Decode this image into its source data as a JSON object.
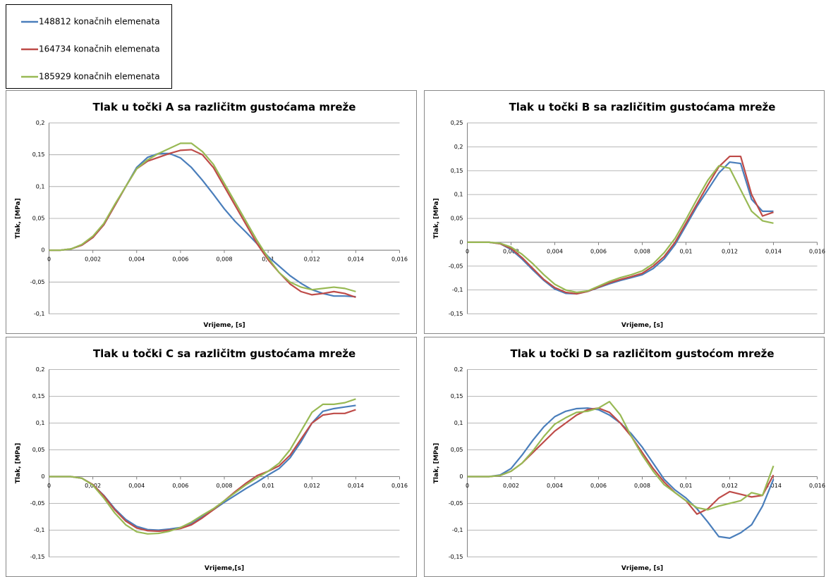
{
  "legend": {
    "entries": [
      {
        "name": "148812 konačnih elemenata",
        "color": "#4a7ebb"
      },
      {
        "name": "164734 konačnih elemenata",
        "color": "#be4b48"
      },
      {
        "name": "185929 konačnih elemenata",
        "color": "#98b954"
      }
    ]
  },
  "chart_data": [
    {
      "type": "line",
      "title": "Tlak u točki A sa različitm gustoćama mreže",
      "x_label": "Vrijeme, [s]",
      "y_label": "Tlak, [MPa]",
      "x": [
        0,
        0.0005,
        0.001,
        0.0015,
        0.002,
        0.0025,
        0.003,
        0.0035,
        0.004,
        0.0045,
        0.005,
        0.0055,
        0.006,
        0.0065,
        0.007,
        0.0075,
        0.008,
        0.0085,
        0.009,
        0.0095,
        0.01,
        0.0105,
        0.011,
        0.0115,
        0.012,
        0.0125,
        0.013,
        0.0135,
        0.014
      ],
      "series": [
        {
          "values": [
            0,
            0,
            0.002,
            0.008,
            0.02,
            0.04,
            0.07,
            0.1,
            0.13,
            0.146,
            0.152,
            0.152,
            0.145,
            0.13,
            0.11,
            0.088,
            0.065,
            0.045,
            0.028,
            0.01,
            -0.01,
            -0.025,
            -0.04,
            -0.052,
            -0.062,
            -0.068,
            -0.072,
            -0.072,
            -0.073
          ]
        },
        {
          "values": [
            0,
            0,
            0.002,
            0.008,
            0.02,
            0.04,
            0.07,
            0.1,
            0.128,
            0.14,
            0.146,
            0.152,
            0.157,
            0.158,
            0.15,
            0.13,
            0.1,
            0.07,
            0.04,
            0.01,
            -0.015,
            -0.035,
            -0.053,
            -0.065,
            -0.07,
            -0.068,
            -0.065,
            -0.068,
            -0.074
          ]
        },
        {
          "values": [
            0,
            0,
            0.002,
            0.009,
            0.022,
            0.042,
            0.072,
            0.1,
            0.128,
            0.142,
            0.152,
            0.16,
            0.168,
            0.168,
            0.155,
            0.135,
            0.105,
            0.075,
            0.045,
            0.015,
            -0.012,
            -0.035,
            -0.05,
            -0.058,
            -0.062,
            -0.06,
            -0.058,
            -0.06,
            -0.065
          ]
        }
      ],
      "xlim": [
        0,
        0.016
      ],
      "xticks": [
        0,
        {
          "value": 0.002,
          "label": "0,002"
        },
        {
          "value": 0.004,
          "label": "0,004"
        },
        {
          "value": 0.006,
          "label": "0,006"
        },
        {
          "value": 0.008,
          "label": "0,008"
        },
        {
          "value": 0.01,
          "label": "0,01"
        },
        {
          "value": 0.012,
          "label": "0,012"
        },
        {
          "value": 0.014,
          "label": "0,014"
        },
        {
          "value": 0.016,
          "label": "0,016"
        }
      ],
      "ylim": [
        -0.1,
        0.2
      ],
      "yticks": [
        {
          "value": -0.1,
          "label": "-0,1"
        },
        {
          "value": -0.05,
          "label": "-0,05"
        },
        0,
        {
          "value": 0.05,
          "label": "0,05"
        },
        {
          "value": 0.1,
          "label": "0,1"
        },
        {
          "value": 0.15,
          "label": "0,15"
        },
        {
          "value": 0.2,
          "label": "0,2"
        }
      ],
      "grid": true
    },
    {
      "type": "line",
      "title": "Tlak u točki B sa različitim gustoćama mreže",
      "x_label": "Vrijeme, [s]",
      "y_label": "Tlak, [MPa]",
      "x": [
        0,
        0.0005,
        0.001,
        0.0015,
        0.002,
        0.0025,
        0.003,
        0.0035,
        0.004,
        0.0045,
        0.005,
        0.0055,
        0.006,
        0.0065,
        0.007,
        0.0075,
        0.008,
        0.0085,
        0.009,
        0.0095,
        0.01,
        0.0105,
        0.011,
        0.0115,
        0.012,
        0.0125,
        0.013,
        0.0135,
        0.014
      ],
      "series": [
        {
          "values": [
            0,
            0,
            0,
            -0.003,
            -0.015,
            -0.035,
            -0.058,
            -0.08,
            -0.098,
            -0.107,
            -0.108,
            -0.103,
            -0.095,
            -0.087,
            -0.08,
            -0.074,
            -0.068,
            -0.055,
            -0.035,
            -0.005,
            0.035,
            0.075,
            0.11,
            0.145,
            0.168,
            0.165,
            0.09,
            0.065,
            0.065
          ]
        },
        {
          "values": [
            0,
            0,
            0,
            -0.003,
            -0.013,
            -0.032,
            -0.055,
            -0.078,
            -0.095,
            -0.105,
            -0.108,
            -0.103,
            -0.094,
            -0.085,
            -0.078,
            -0.072,
            -0.065,
            -0.05,
            -0.03,
            0,
            0.04,
            0.08,
            0.12,
            0.158,
            0.18,
            0.18,
            0.1,
            0.055,
            0.063
          ]
        },
        {
          "values": [
            0,
            0,
            0,
            -0.002,
            -0.01,
            -0.025,
            -0.045,
            -0.068,
            -0.088,
            -0.1,
            -0.105,
            -0.102,
            -0.092,
            -0.082,
            -0.074,
            -0.068,
            -0.06,
            -0.045,
            -0.022,
            0.008,
            0.048,
            0.09,
            0.13,
            0.16,
            0.155,
            0.11,
            0.065,
            0.045,
            0.04
          ]
        }
      ],
      "xlim": [
        0,
        0.016
      ],
      "xticks": [
        0,
        {
          "value": 0.002,
          "label": "0,002"
        },
        {
          "value": 0.004,
          "label": "0,004"
        },
        {
          "value": 0.006,
          "label": "0,006"
        },
        {
          "value": 0.008,
          "label": "0,008"
        },
        {
          "value": 0.01,
          "label": "0,01"
        },
        {
          "value": 0.012,
          "label": "0,012"
        },
        {
          "value": 0.014,
          "label": "0,014"
        },
        {
          "value": 0.016,
          "label": "0,016"
        }
      ],
      "ylim": [
        -0.15,
        0.25
      ],
      "yticks": [
        {
          "value": -0.15,
          "label": "-0,15"
        },
        {
          "value": -0.1,
          "label": "-0,1"
        },
        {
          "value": -0.05,
          "label": "-0,05"
        },
        0,
        {
          "value": 0.05,
          "label": "0,05"
        },
        {
          "value": 0.1,
          "label": "0,1"
        },
        {
          "value": 0.15,
          "label": "0,15"
        },
        {
          "value": 0.2,
          "label": "0,2"
        },
        {
          "value": 0.25,
          "label": "0,25"
        }
      ],
      "grid": true
    },
    {
      "type": "line",
      "title": "Tlak u točki C sa različitm gustoćama mreže",
      "x_label": "Vrijeme,[s]",
      "y_label": "Tlak, [MPa]",
      "x": [
        0,
        0.0005,
        0.001,
        0.0015,
        0.002,
        0.0025,
        0.003,
        0.0035,
        0.004,
        0.0045,
        0.005,
        0.0055,
        0.006,
        0.0065,
        0.007,
        0.0075,
        0.008,
        0.0085,
        0.009,
        0.0095,
        0.01,
        0.0105,
        0.011,
        0.0115,
        0.012,
        0.0125,
        0.013,
        0.0135,
        0.014
      ],
      "series": [
        {
          "values": [
            0,
            0,
            0,
            -0.003,
            -0.015,
            -0.035,
            -0.06,
            -0.08,
            -0.093,
            -0.099,
            -0.1,
            -0.098,
            -0.095,
            -0.088,
            -0.075,
            -0.062,
            -0.048,
            -0.035,
            -0.022,
            -0.01,
            0.003,
            0.015,
            0.035,
            0.065,
            0.1,
            0.122,
            0.127,
            0.13,
            0.133
          ]
        },
        {
          "values": [
            0,
            0,
            0,
            -0.003,
            -0.015,
            -0.036,
            -0.062,
            -0.083,
            -0.096,
            -0.101,
            -0.102,
            -0.1,
            -0.097,
            -0.09,
            -0.077,
            -0.062,
            -0.045,
            -0.028,
            -0.012,
            0.002,
            0.01,
            0.02,
            0.04,
            0.07,
            0.1,
            0.115,
            0.118,
            0.118,
            0.125
          ]
        },
        {
          "values": [
            0,
            0,
            0,
            -0.003,
            -0.016,
            -0.04,
            -0.068,
            -0.09,
            -0.103,
            -0.107,
            -0.106,
            -0.102,
            -0.095,
            -0.085,
            -0.072,
            -0.06,
            -0.045,
            -0.03,
            -0.015,
            -0.002,
            0.01,
            0.025,
            0.05,
            0.085,
            0.12,
            0.135,
            0.135,
            0.138,
            0.145
          ]
        }
      ],
      "xlim": [
        0,
        0.016
      ],
      "xticks": [
        0,
        {
          "value": 0.002,
          "label": "0,002"
        },
        {
          "value": 0.004,
          "label": "0,004"
        },
        {
          "value": 0.006,
          "label": "0,006"
        },
        {
          "value": 0.008,
          "label": "0,008"
        },
        {
          "value": 0.01,
          "label": "0,01"
        },
        {
          "value": 0.012,
          "label": "0,012"
        },
        {
          "value": 0.014,
          "label": "0,014"
        },
        {
          "value": 0.016,
          "label": "0,016"
        }
      ],
      "ylim": [
        -0.15,
        0.2
      ],
      "yticks": [
        {
          "value": -0.15,
          "label": "-0,15"
        },
        {
          "value": -0.1,
          "label": "-0,1"
        },
        {
          "value": -0.05,
          "label": "-0,05"
        },
        0,
        {
          "value": 0.05,
          "label": "0,05"
        },
        {
          "value": 0.1,
          "label": "0,1"
        },
        {
          "value": 0.15,
          "label": "0,15"
        },
        {
          "value": 0.2,
          "label": "0,2"
        }
      ],
      "grid": true
    },
    {
      "type": "line",
      "title": "Tlak u točki D sa različitom gustoćom mreže",
      "x_label": "Vrijeme, [s]",
      "y_label": "Tlak, [MPa]",
      "x": [
        0,
        0.0005,
        0.001,
        0.0015,
        0.002,
        0.0025,
        0.003,
        0.0035,
        0.004,
        0.0045,
        0.005,
        0.0055,
        0.006,
        0.0065,
        0.007,
        0.0075,
        0.008,
        0.0085,
        0.009,
        0.0095,
        0.01,
        0.0105,
        0.011,
        0.0115,
        0.012,
        0.0125,
        0.013,
        0.0135,
        0.014
      ],
      "series": [
        {
          "values": [
            0,
            0,
            0,
            0.003,
            0.015,
            0.04,
            0.068,
            0.093,
            0.112,
            0.122,
            0.127,
            0.128,
            0.125,
            0.115,
            0.1,
            0.08,
            0.055,
            0.025,
            -0.005,
            -0.025,
            -0.04,
            -0.06,
            -0.085,
            -0.112,
            -0.115,
            -0.105,
            -0.09,
            -0.055,
            -0.005
          ]
        },
        {
          "values": [
            0,
            0,
            0,
            0.002,
            0.01,
            0.025,
            0.045,
            0.065,
            0.085,
            0.1,
            0.115,
            0.125,
            0.128,
            0.12,
            0.1,
            0.075,
            0.045,
            0.015,
            -0.01,
            -0.03,
            -0.045,
            -0.07,
            -0.06,
            -0.04,
            -0.028,
            -0.033,
            -0.038,
            -0.035,
            0.003
          ]
        },
        {
          "values": [
            0,
            0,
            0,
            0.002,
            0.01,
            0.025,
            0.048,
            0.075,
            0.098,
            0.11,
            0.12,
            0.122,
            0.128,
            0.14,
            0.115,
            0.075,
            0.04,
            0.01,
            -0.015,
            -0.03,
            -0.045,
            -0.058,
            -0.062,
            -0.055,
            -0.05,
            -0.045,
            -0.03,
            -0.035,
            0.02
          ]
        }
      ],
      "xlim": [
        0,
        0.016
      ],
      "xticks": [
        0,
        {
          "value": 0.002,
          "label": "0,002"
        },
        {
          "value": 0.004,
          "label": "0,004"
        },
        {
          "value": 0.006,
          "label": "0,006"
        },
        {
          "value": 0.008,
          "label": "0,008"
        },
        {
          "value": 0.01,
          "label": "0,01"
        },
        {
          "value": 0.012,
          "label": "0,012"
        },
        {
          "value": 0.014,
          "label": "0,014"
        },
        {
          "value": 0.016,
          "label": "0,016"
        }
      ],
      "ylim": [
        -0.15,
        0.2
      ],
      "yticks": [
        {
          "value": -0.15,
          "label": "-0,15"
        },
        {
          "value": -0.1,
          "label": "-0,1"
        },
        {
          "value": -0.05,
          "label": "-0,05"
        },
        0,
        {
          "value": 0.05,
          "label": "0,05"
        },
        {
          "value": 0.1,
          "label": "0,1"
        },
        {
          "value": 0.15,
          "label": "0,15"
        },
        {
          "value": 0.2,
          "label": "0,2"
        }
      ],
      "grid": true
    }
  ]
}
